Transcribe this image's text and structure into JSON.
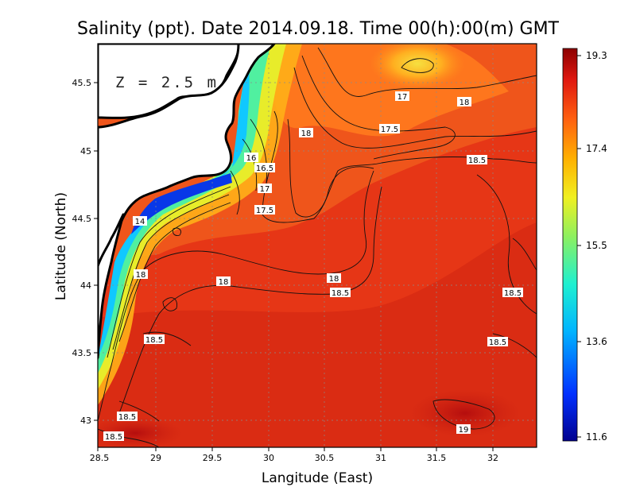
{
  "title": "Salinity (ppt). Date 2014.09.18. Time 00(h):00(m) GMT",
  "depth_label": "Z = 2.5 m",
  "x_axis": {
    "label": "Langitude (East)",
    "ticks": [
      "28.5",
      "29",
      "29.5",
      "30",
      "30.5",
      "31",
      "31.5",
      "32"
    ]
  },
  "y_axis": {
    "label": "Latitude (North)",
    "ticks": [
      "45.5",
      "45",
      "44.5",
      "44",
      "43.5",
      "43"
    ]
  },
  "colorbar": {
    "ticks": [
      "19.3",
      "17.4",
      "15.5",
      "13.6",
      "11.6"
    ],
    "min": 11.6,
    "max": 19.3
  },
  "contour_labels": [
    "17",
    "18",
    "17.5",
    "18",
    "18.5",
    "16",
    "16.5",
    "17",
    "17.5",
    "14",
    "18",
    "18",
    "18",
    "18.5",
    "18.5",
    "18.5",
    "18.5",
    "18.5",
    "19",
    "18.5"
  ],
  "colors": {
    "background": "#ffffff",
    "sea_dominant": "#e23a16",
    "land": "#ffffff",
    "coastline": "#000000"
  }
}
